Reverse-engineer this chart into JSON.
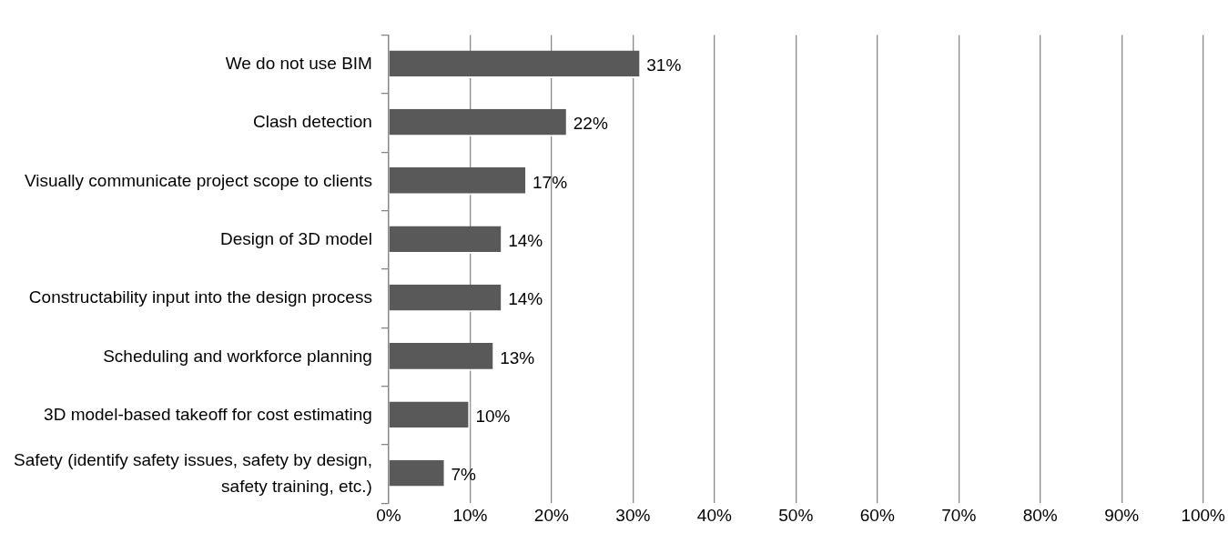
{
  "chart_data": {
    "type": "bar",
    "orientation": "horizontal",
    "categories": [
      "We do not use BIM",
      "Clash detection",
      "Visually communicate project scope to clients",
      "Design of 3D model",
      "Constructability input into the design process",
      "Scheduling and workforce planning",
      "3D model-based takeoff for cost estimating",
      "Safety (identify safety issues, safety by design, safety training, etc.)"
    ],
    "values": [
      31,
      22,
      17,
      14,
      14,
      13,
      10,
      7
    ],
    "value_labels": [
      "31%",
      "22%",
      "17%",
      "14%",
      "14%",
      "13%",
      "10%",
      "7%"
    ],
    "color": "#595959",
    "xlim": [
      0,
      100
    ],
    "xticks": [
      {
        "value": 0,
        "label": "0%"
      },
      {
        "value": 10,
        "label": "10%"
      },
      {
        "value": 20,
        "label": "20%"
      },
      {
        "value": 30,
        "label": "30%"
      },
      {
        "value": 40,
        "label": "40%"
      },
      {
        "value": 50,
        "label": "50%"
      },
      {
        "value": 60,
        "label": "60%"
      },
      {
        "value": 70,
        "label": "70%"
      },
      {
        "value": 80,
        "label": "80%"
      },
      {
        "value": 90,
        "label": "90%"
      },
      {
        "value": 100,
        "label": "100%"
      }
    ],
    "grid": "x",
    "legend": false
  }
}
